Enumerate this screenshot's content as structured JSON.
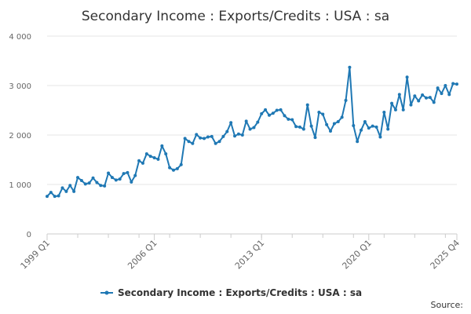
{
  "chart_data": {
    "type": "line",
    "title": "Secondary Income : Exports/Credits : USA : sa",
    "xlabel": "",
    "ylabel": "",
    "ylim": [
      0,
      4000
    ],
    "yticks": [
      0,
      1000,
      2000,
      3000,
      4000
    ],
    "ytick_labels": [
      "0",
      "1 000",
      "2 000",
      "3 000",
      "4 000"
    ],
    "xtick_labels": [
      "1999 Q1",
      "2006 Q1",
      "2013 Q1",
      "2020 Q1",
      "2025 Q4"
    ],
    "xtick_positions": [
      0,
      28,
      56,
      84,
      107
    ],
    "minor_tick_step": 8,
    "grid": true,
    "legend": "bottom",
    "series": [
      {
        "name": "Secondary Income : Exports/Credits : USA : sa",
        "color": "#1f78b4",
        "x": [
          "1999 Q1",
          "1999 Q2",
          "1999 Q3",
          "1999 Q4",
          "2000 Q1",
          "2000 Q2",
          "2000 Q3",
          "2000 Q4",
          "2001 Q1",
          "2001 Q2",
          "2001 Q3",
          "2001 Q4",
          "2002 Q1",
          "2002 Q2",
          "2002 Q3",
          "2002 Q4",
          "2003 Q1",
          "2003 Q2",
          "2003 Q3",
          "2003 Q4",
          "2004 Q1",
          "2004 Q2",
          "2004 Q3",
          "2004 Q4",
          "2005 Q1",
          "2005 Q2",
          "2005 Q3",
          "2005 Q4",
          "2006 Q1",
          "2006 Q2",
          "2006 Q3",
          "2006 Q4",
          "2007 Q1",
          "2007 Q2",
          "2007 Q3",
          "2007 Q4",
          "2008 Q1",
          "2008 Q2",
          "2008 Q3",
          "2008 Q4",
          "2009 Q1",
          "2009 Q2",
          "2009 Q3",
          "2009 Q4",
          "2010 Q1",
          "2010 Q2",
          "2010 Q3",
          "2010 Q4",
          "2011 Q1",
          "2011 Q2",
          "2011 Q3",
          "2011 Q4",
          "2012 Q1",
          "2012 Q2",
          "2012 Q3",
          "2012 Q4",
          "2013 Q1",
          "2013 Q2",
          "2013 Q3",
          "2013 Q4",
          "2014 Q1",
          "2014 Q2",
          "2014 Q3",
          "2014 Q4",
          "2015 Q1",
          "2015 Q2",
          "2015 Q3",
          "2015 Q4",
          "2016 Q1",
          "2016 Q2",
          "2016 Q3",
          "2016 Q4",
          "2017 Q1",
          "2017 Q2",
          "2017 Q3",
          "2017 Q4",
          "2018 Q1",
          "2018 Q2",
          "2018 Q3",
          "2018 Q4",
          "2019 Q1",
          "2019 Q2",
          "2019 Q3",
          "2019 Q4",
          "2020 Q1",
          "2020 Q2",
          "2020 Q3",
          "2020 Q4",
          "2021 Q1",
          "2021 Q2",
          "2021 Q3",
          "2021 Q4",
          "2022 Q1",
          "2022 Q2",
          "2022 Q3",
          "2022 Q4",
          "2023 Q1",
          "2023 Q2",
          "2023 Q3",
          "2023 Q4",
          "2024 Q1",
          "2024 Q2",
          "2024 Q3",
          "2024 Q4",
          "2025 Q1",
          "2025 Q2",
          "2025 Q3",
          "2025 Q4"
        ],
        "values": [
          760,
          840,
          760,
          770,
          930,
          860,
          980,
          860,
          1140,
          1080,
          1010,
          1030,
          1130,
          1040,
          980,
          970,
          1230,
          1140,
          1090,
          1110,
          1220,
          1240,
          1050,
          1180,
          1480,
          1430,
          1620,
          1570,
          1540,
          1510,
          1780,
          1620,
          1340,
          1290,
          1320,
          1400,
          1930,
          1870,
          1830,
          2010,
          1940,
          1930,
          1960,
          1970,
          1830,
          1870,
          1970,
          2070,
          2250,
          1980,
          2020,
          2000,
          2280,
          2120,
          2150,
          2260,
          2430,
          2510,
          2400,
          2440,
          2500,
          2510,
          2390,
          2320,
          2310,
          2170,
          2160,
          2120,
          2610,
          2180,
          1950,
          2460,
          2420,
          2210,
          2080,
          2230,
          2270,
          2360,
          2700,
          3370,
          2190,
          1870,
          2100,
          2270,
          2140,
          2180,
          2160,
          1960,
          2460,
          2120,
          2640,
          2510,
          2820,
          2510,
          3170,
          2610,
          2790,
          2690,
          2810,
          2750,
          2760,
          2660,
          2950,
          2840,
          3000,
          2820,
          3040,
          3030
        ]
      }
    ],
    "source_label": "Source:"
  }
}
